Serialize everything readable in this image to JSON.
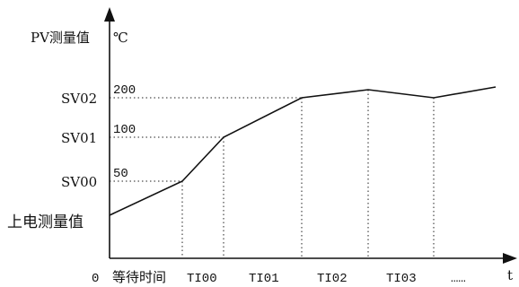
{
  "diagram": {
    "y_axis": {
      "label": "PV测量值",
      "unit": "℃"
    },
    "x_axis": {
      "label": "t",
      "origin_label": "0"
    },
    "y_levels": [
      {
        "name": "SV02",
        "value_label": "200"
      },
      {
        "name": "SV01",
        "value_label": "100"
      },
      {
        "name": "SV00",
        "value_label": "50"
      },
      {
        "name": "上电测量值",
        "value_label": ""
      }
    ],
    "time_segments": [
      "等待时间",
      "TI00",
      "TI01",
      "TI02",
      "TI03",
      "……"
    ]
  }
}
